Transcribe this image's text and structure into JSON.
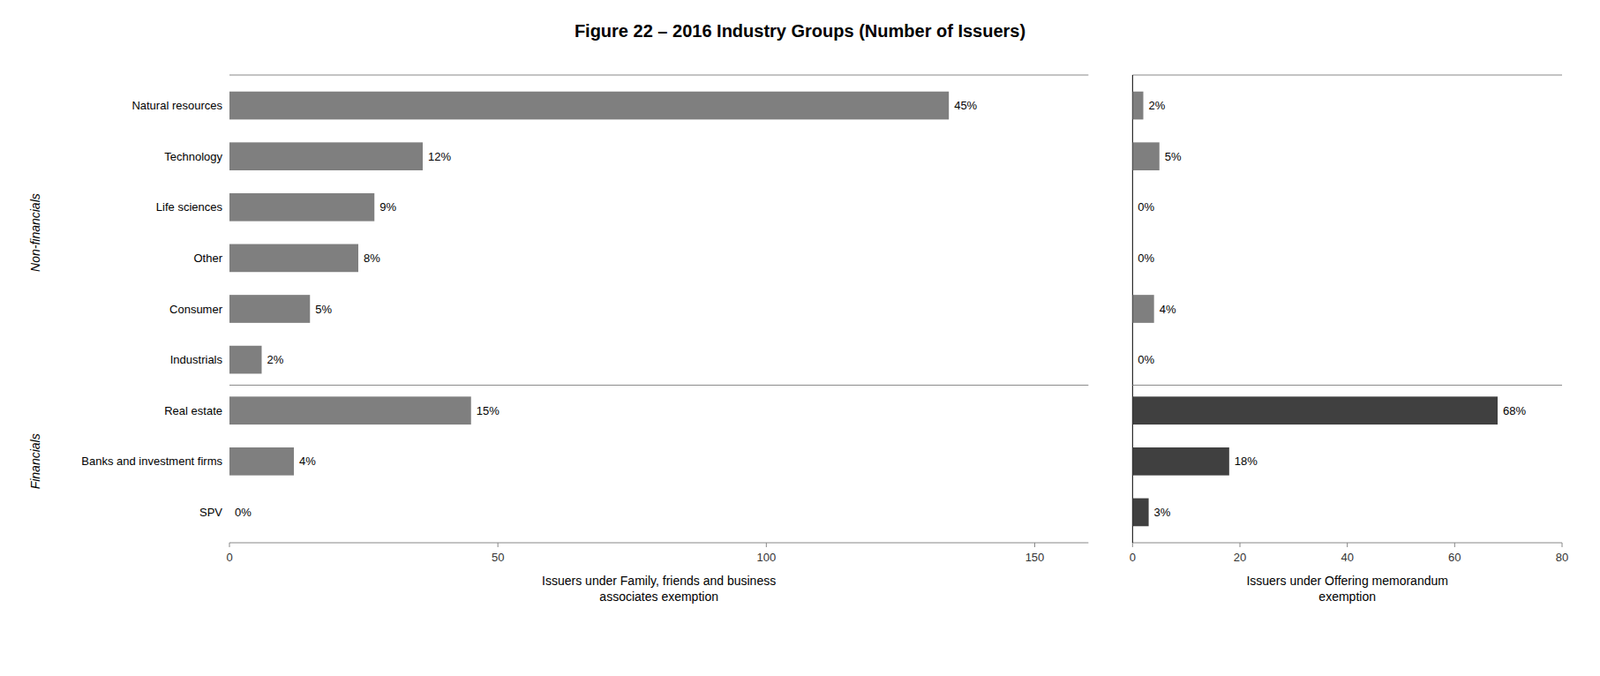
{
  "chart_data": [
    {
      "type": "bar",
      "orientation": "horizontal",
      "title": "Figure 22 – 2016 Industry Groups (Number of Issuers)",
      "categories": [
        "Natural resources",
        "Technology",
        "Life sciences",
        "Other",
        "Consumer",
        "Industrials",
        "Real estate",
        "Banks and investment firms",
        "SPV"
      ],
      "values": [
        134,
        36,
        27,
        24,
        15,
        6,
        45,
        12,
        0
      ],
      "value_labels": [
        "45%",
        "12%",
        "9%",
        "8%",
        "5%",
        "2%",
        "15%",
        "4%",
        "0%"
      ],
      "data_labels": true,
      "color": "#7f7f7f",
      "xlabel": "Issuers under Family, friends and business\nassociates exemption",
      "xlim": [
        0,
        160
      ],
      "xticks": [
        0,
        50,
        100,
        150
      ],
      "annotations": [
        "Non-financials",
        "Financials"
      ]
    },
    {
      "type": "bar",
      "orientation": "horizontal",
      "categories": [
        "Natural resources",
        "Technology",
        "Life sciences",
        "Other",
        "Consumer",
        "Industrials",
        "Real estate",
        "Banks and investment firms",
        "SPV"
      ],
      "values": [
        2,
        5,
        0,
        0,
        4,
        0,
        68,
        18,
        3
      ],
      "value_labels": [
        "2%",
        "5%",
        "0%",
        "0%",
        "4%",
        "0%",
        "68%",
        "18%",
        "3%"
      ],
      "data_labels": true,
      "colors": [
        "#7f7f7f",
        "#7f7f7f",
        "#7f7f7f",
        "#7f7f7f",
        "#7f7f7f",
        "#7f7f7f",
        "#404040",
        "#404040",
        "#404040"
      ],
      "xlabel": "Issuers under Offering memorandum\nexemption",
      "xlim": [
        0,
        80
      ],
      "xticks": [
        0,
        20,
        40,
        60,
        80
      ],
      "tick_labels": "x"
    }
  ]
}
